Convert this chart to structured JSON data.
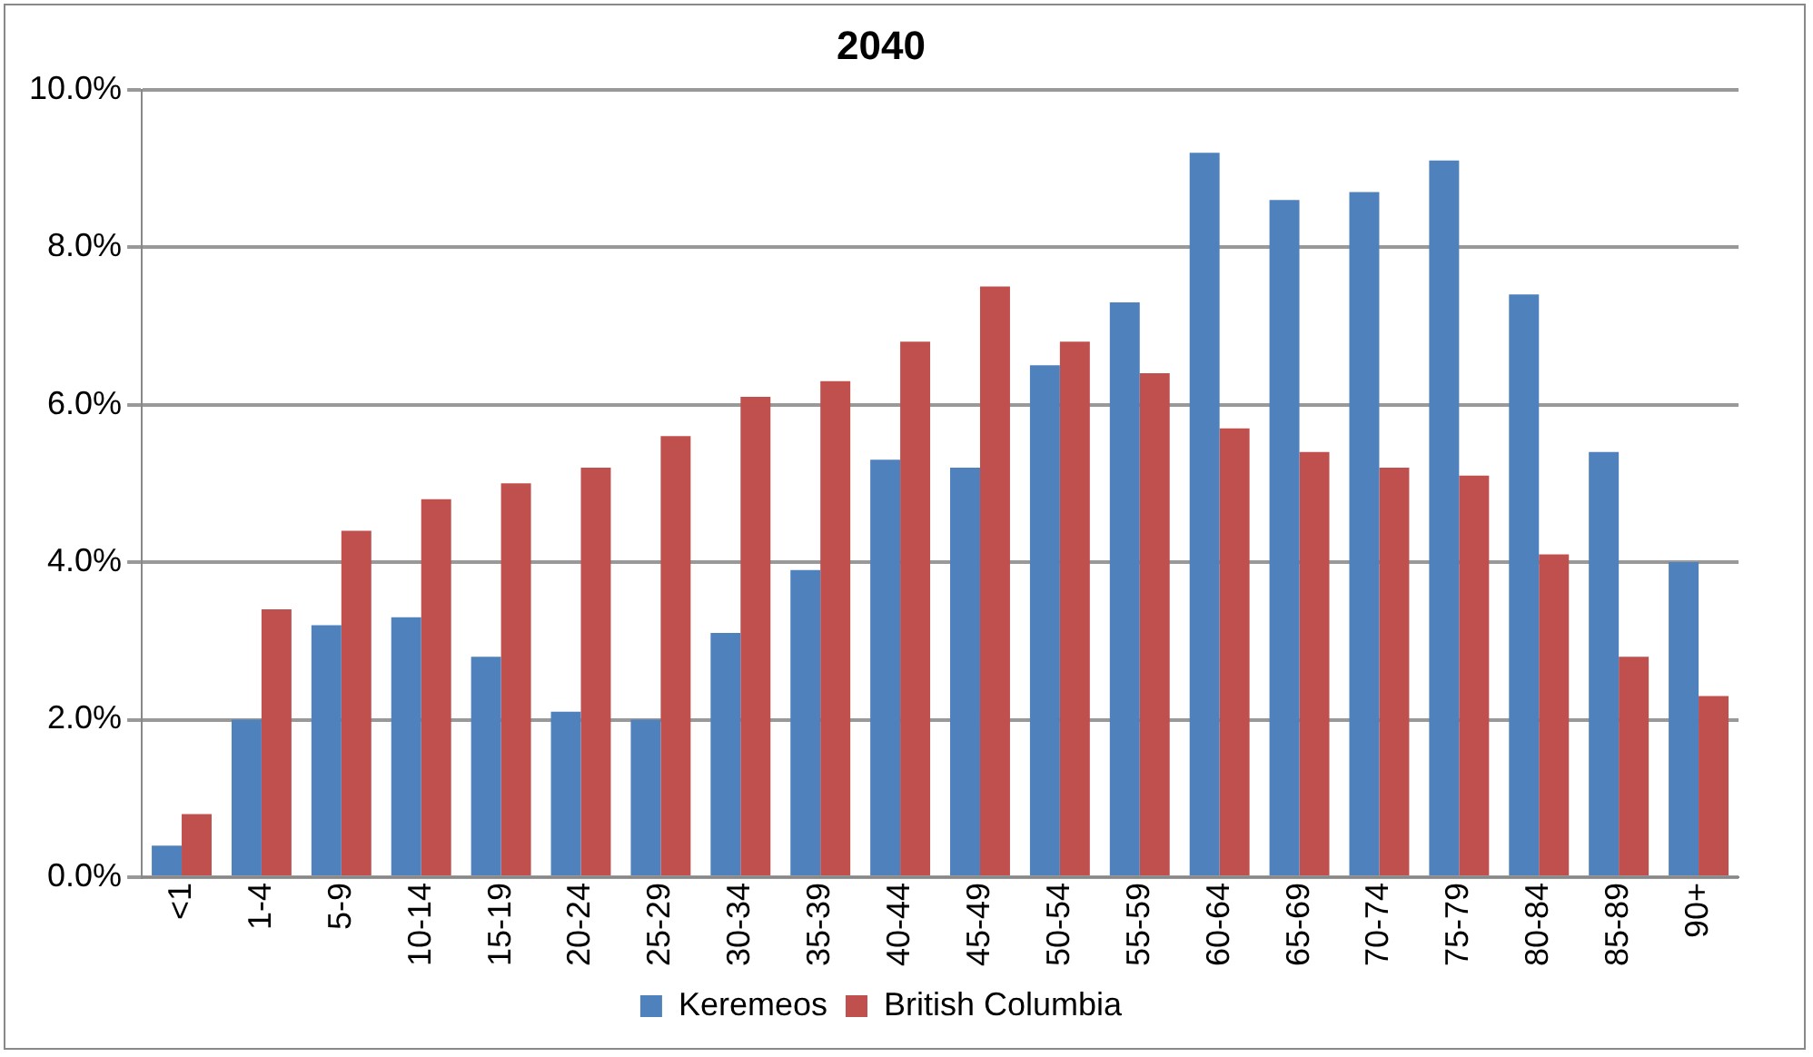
{
  "chart_data": {
    "type": "bar",
    "title": "2040",
    "categories": [
      "<1",
      "1-4",
      "5-9",
      "10-14",
      "15-19",
      "20-24",
      "25-29",
      "30-34",
      "35-39",
      "40-44",
      "45-49",
      "50-54",
      "55-59",
      "60-64",
      "65-69",
      "70-74",
      "75-79",
      "80-84",
      "85-89",
      "90+"
    ],
    "series": [
      {
        "name": "Keremeos",
        "color": "#4f81bd",
        "values": [
          0.4,
          2.0,
          3.2,
          3.3,
          2.8,
          2.1,
          2.0,
          3.1,
          3.9,
          5.3,
          5.2,
          6.5,
          7.3,
          9.2,
          8.6,
          8.7,
          9.1,
          7.4,
          5.4,
          4.0
        ]
      },
      {
        "name": "British Columbia",
        "color": "#c0504d",
        "values": [
          0.8,
          3.4,
          4.4,
          4.8,
          5.0,
          5.2,
          5.6,
          6.1,
          6.3,
          6.8,
          7.5,
          6.8,
          6.4,
          5.7,
          5.4,
          5.2,
          5.1,
          4.1,
          2.8,
          2.3
        ]
      }
    ],
    "ylim": [
      0,
      10
    ],
    "yticks": [
      {
        "value": 0,
        "label": "0.0%"
      },
      {
        "value": 2,
        "label": "2.0%"
      },
      {
        "value": 4,
        "label": "4.0%"
      },
      {
        "value": 6,
        "label": "6.0%"
      },
      {
        "value": 8,
        "label": "8.0%"
      },
      {
        "value": 10,
        "label": "10.0%"
      }
    ],
    "grid": "y",
    "legend": "bottom"
  }
}
